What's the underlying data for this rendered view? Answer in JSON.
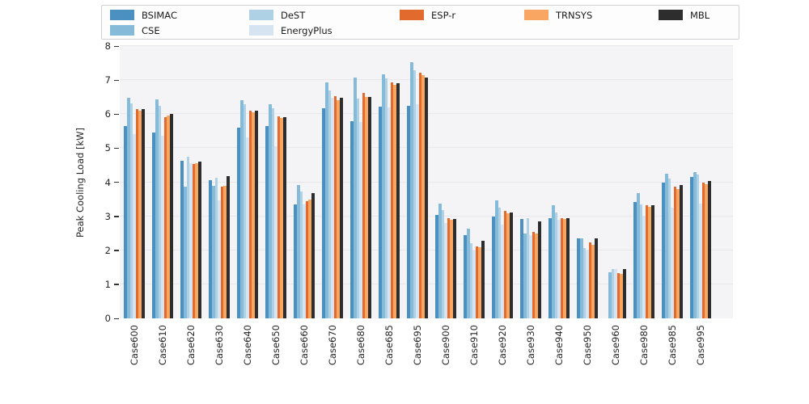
{
  "chart_data": {
    "type": "bar",
    "title": "",
    "xlabel": "",
    "ylabel": "Peak Cooling Load [kW]",
    "ylim": [
      0,
      8
    ],
    "yticks": [
      0,
      1,
      2,
      3,
      4,
      5,
      6,
      7,
      8
    ],
    "grid": true,
    "legend_position": "top",
    "categories": [
      "Case600",
      "Case610",
      "Case620",
      "Case630",
      "Case640",
      "Case650",
      "Case660",
      "Case670",
      "Case680",
      "Case685",
      "Case695",
      "Case900",
      "Case910",
      "Case920",
      "Case930",
      "Case940",
      "Case950",
      "Case960",
      "Case980",
      "Case985",
      "Case995"
    ],
    "series": [
      {
        "name": "BSIMAC",
        "color": "#4a90c0",
        "values": [
          5.65,
          5.45,
          4.63,
          4.05,
          5.6,
          5.65,
          3.35,
          6.18,
          5.8,
          6.22,
          6.25,
          3.05,
          2.45,
          3.0,
          2.92,
          2.95,
          2.36,
          null,
          3.42,
          4.0,
          4.16
        ]
      },
      {
        "name": "CSE",
        "color": "#85bad8",
        "values": [
          6.47,
          6.43,
          3.88,
          3.9,
          6.42,
          6.3,
          3.92,
          6.93,
          7.08,
          7.17,
          7.52,
          3.38,
          2.63,
          3.47,
          2.5,
          3.32,
          2.35,
          1.36,
          3.68,
          4.26,
          4.3
        ]
      },
      {
        "name": "DeST",
        "color": "#aed1e6",
        "values": [
          6.31,
          6.25,
          4.75,
          4.12,
          6.28,
          6.17,
          3.72,
          6.7,
          6.45,
          7.05,
          7.28,
          3.18,
          2.2,
          3.25,
          2.95,
          3.12,
          2.06,
          1.44,
          3.35,
          4.1,
          4.23
        ]
      },
      {
        "name": "EnergyPlus",
        "color": "#d6e4f1",
        "values": [
          5.42,
          5.36,
          4.56,
          3.46,
          5.31,
          5.05,
          3.35,
          6.48,
          5.78,
          6.2,
          6.3,
          2.8,
          2.0,
          2.75,
          2.45,
          2.9,
          2.03,
          1.45,
          3.02,
          3.26,
          3.36
        ]
      },
      {
        "name": "ESP-r",
        "color": "#e26a2c",
        "values": [
          6.16,
          5.91,
          4.53,
          3.88,
          6.1,
          5.93,
          3.45,
          6.52,
          6.62,
          6.93,
          7.22,
          2.95,
          2.12,
          3.16,
          2.55,
          2.94,
          2.22,
          1.32,
          3.33,
          3.88,
          4.0
        ]
      },
      {
        "name": "TRNSYS",
        "color": "#f9a662",
        "values": [
          6.1,
          5.95,
          4.56,
          3.9,
          6.05,
          5.89,
          3.5,
          6.42,
          6.5,
          6.86,
          7.15,
          2.9,
          2.08,
          3.08,
          2.5,
          2.92,
          2.16,
          1.31,
          3.28,
          3.8,
          3.94
        ]
      },
      {
        "name": "MBL",
        "color": "#2d2d2d",
        "values": [
          6.15,
          6.01,
          4.61,
          4.17,
          6.1,
          5.92,
          3.68,
          6.47,
          6.5,
          6.9,
          7.08,
          2.92,
          2.27,
          3.12,
          2.84,
          2.95,
          2.36,
          1.46,
          3.32,
          3.92,
          4.04
        ]
      }
    ]
  },
  "legend": {
    "columns": [
      {
        "items": [
          "BSIMAC",
          "CSE"
        ]
      },
      {
        "items": [
          "DeST",
          "EnergyPlus"
        ]
      },
      {
        "items": [
          "ESP-r"
        ]
      },
      {
        "items": [
          "TRNSYS"
        ]
      },
      {
        "items": [
          "MBL"
        ]
      }
    ]
  },
  "axes": {
    "y_title": "Peak Cooling Load [kW]"
  }
}
